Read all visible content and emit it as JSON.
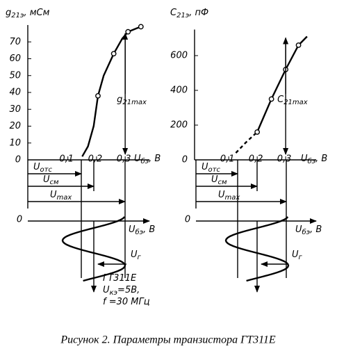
{
  "chart_data": [
    {
      "type": "line",
      "y_label": {
        "main": "g",
        "sub": "21э",
        "rest": ", мСм"
      },
      "x_label": {
        "main": "U",
        "sub": "бэ",
        "rest": ", В"
      },
      "xlim": [
        -0.04,
        0.37
      ],
      "ylim": [
        0,
        80
      ],
      "xticks": [
        {
          "value": 0.1,
          "label": "0,1"
        },
        {
          "value": 0.2,
          "label": "0,2"
        },
        {
          "value": 0.3,
          "label": "0,3"
        }
      ],
      "yticks": [
        0,
        10,
        20,
        30,
        40,
        50,
        60,
        70
      ],
      "annotation": {
        "main": "g",
        "sub": "21max"
      },
      "series": [
        {
          "style": "solid",
          "color": "#000",
          "x": [
            0.15,
            0.17,
            0.19,
            0.205,
            0.225,
            0.26,
            0.29,
            0.31,
            0.34,
            0.355
          ],
          "values": [
            2,
            8,
            20,
            38,
            50,
            63,
            72,
            76,
            78,
            79
          ]
        },
        {
          "style": "points",
          "color": "#000",
          "x": [
            0.205,
            0.26,
            0.31,
            0.355
          ],
          "values": [
            38,
            63,
            76,
            79
          ]
        }
      ]
    },
    {
      "type": "line",
      "y_label": {
        "main": "C",
        "sub": "21э",
        "rest": ", пФ"
      },
      "x_label": {
        "main": "U",
        "sub": "бэ",
        "rest": ", В"
      },
      "xlim": [
        -0.02,
        0.39
      ],
      "ylim": [
        0,
        750
      ],
      "xticks": [
        {
          "value": 0.1,
          "label": "0,1"
        },
        {
          "value": 0.2,
          "label": "0,2"
        },
        {
          "value": 0.3,
          "label": "0,3"
        }
      ],
      "yticks": [
        0,
        200,
        400,
        600
      ],
      "annotation": {
        "main": "C",
        "sub": "21max"
      },
      "series": [
        {
          "style": "dashed",
          "color": "#000",
          "x": [
            0.125,
            0.16,
            0.2
          ],
          "values": [
            40,
            100,
            160
          ]
        },
        {
          "style": "solid",
          "color": "#000",
          "x": [
            0.2,
            0.25,
            0.3,
            0.345,
            0.375
          ],
          "values": [
            160,
            350,
            520,
            660,
            710
          ]
        },
        {
          "style": "points",
          "color": "#000",
          "x": [
            0.2,
            0.25,
            0.3,
            0.345
          ],
          "values": [
            160,
            350,
            520,
            660
          ]
        }
      ]
    }
  ],
  "diagrams": [
    {
      "u_ots": {
        "main": "U",
        "sub": "отс"
      },
      "u_sm": {
        "main": "U",
        "sub": "см"
      },
      "u_max": {
        "main": "U",
        "sub": "max"
      },
      "origin": "0",
      "axis_label": {
        "main": "U",
        "sub": "бэ",
        "rest": ", В"
      },
      "u_g": {
        "main": "U",
        "sub": "г"
      },
      "note": [
        {
          "main": "ГТ311Е"
        },
        {
          "main": "U",
          "sub": "кэ",
          "rest": "=5В,"
        },
        {
          "main": "f =30 МГц"
        }
      ]
    },
    {
      "u_ots": {
        "main": "U",
        "sub": "отс"
      },
      "u_sm": {
        "main": "U",
        "sub": "см"
      },
      "u_max": {
        "main": "U",
        "sub": "max"
      },
      "origin": "0",
      "axis_label": {
        "main": "U",
        "sub": "бэ",
        "rest": ", В"
      },
      "u_g": {
        "main": "U",
        "sub": "г"
      }
    }
  ],
  "caption": "Рисунок 2. Параметры транзистора ГТ311Е"
}
